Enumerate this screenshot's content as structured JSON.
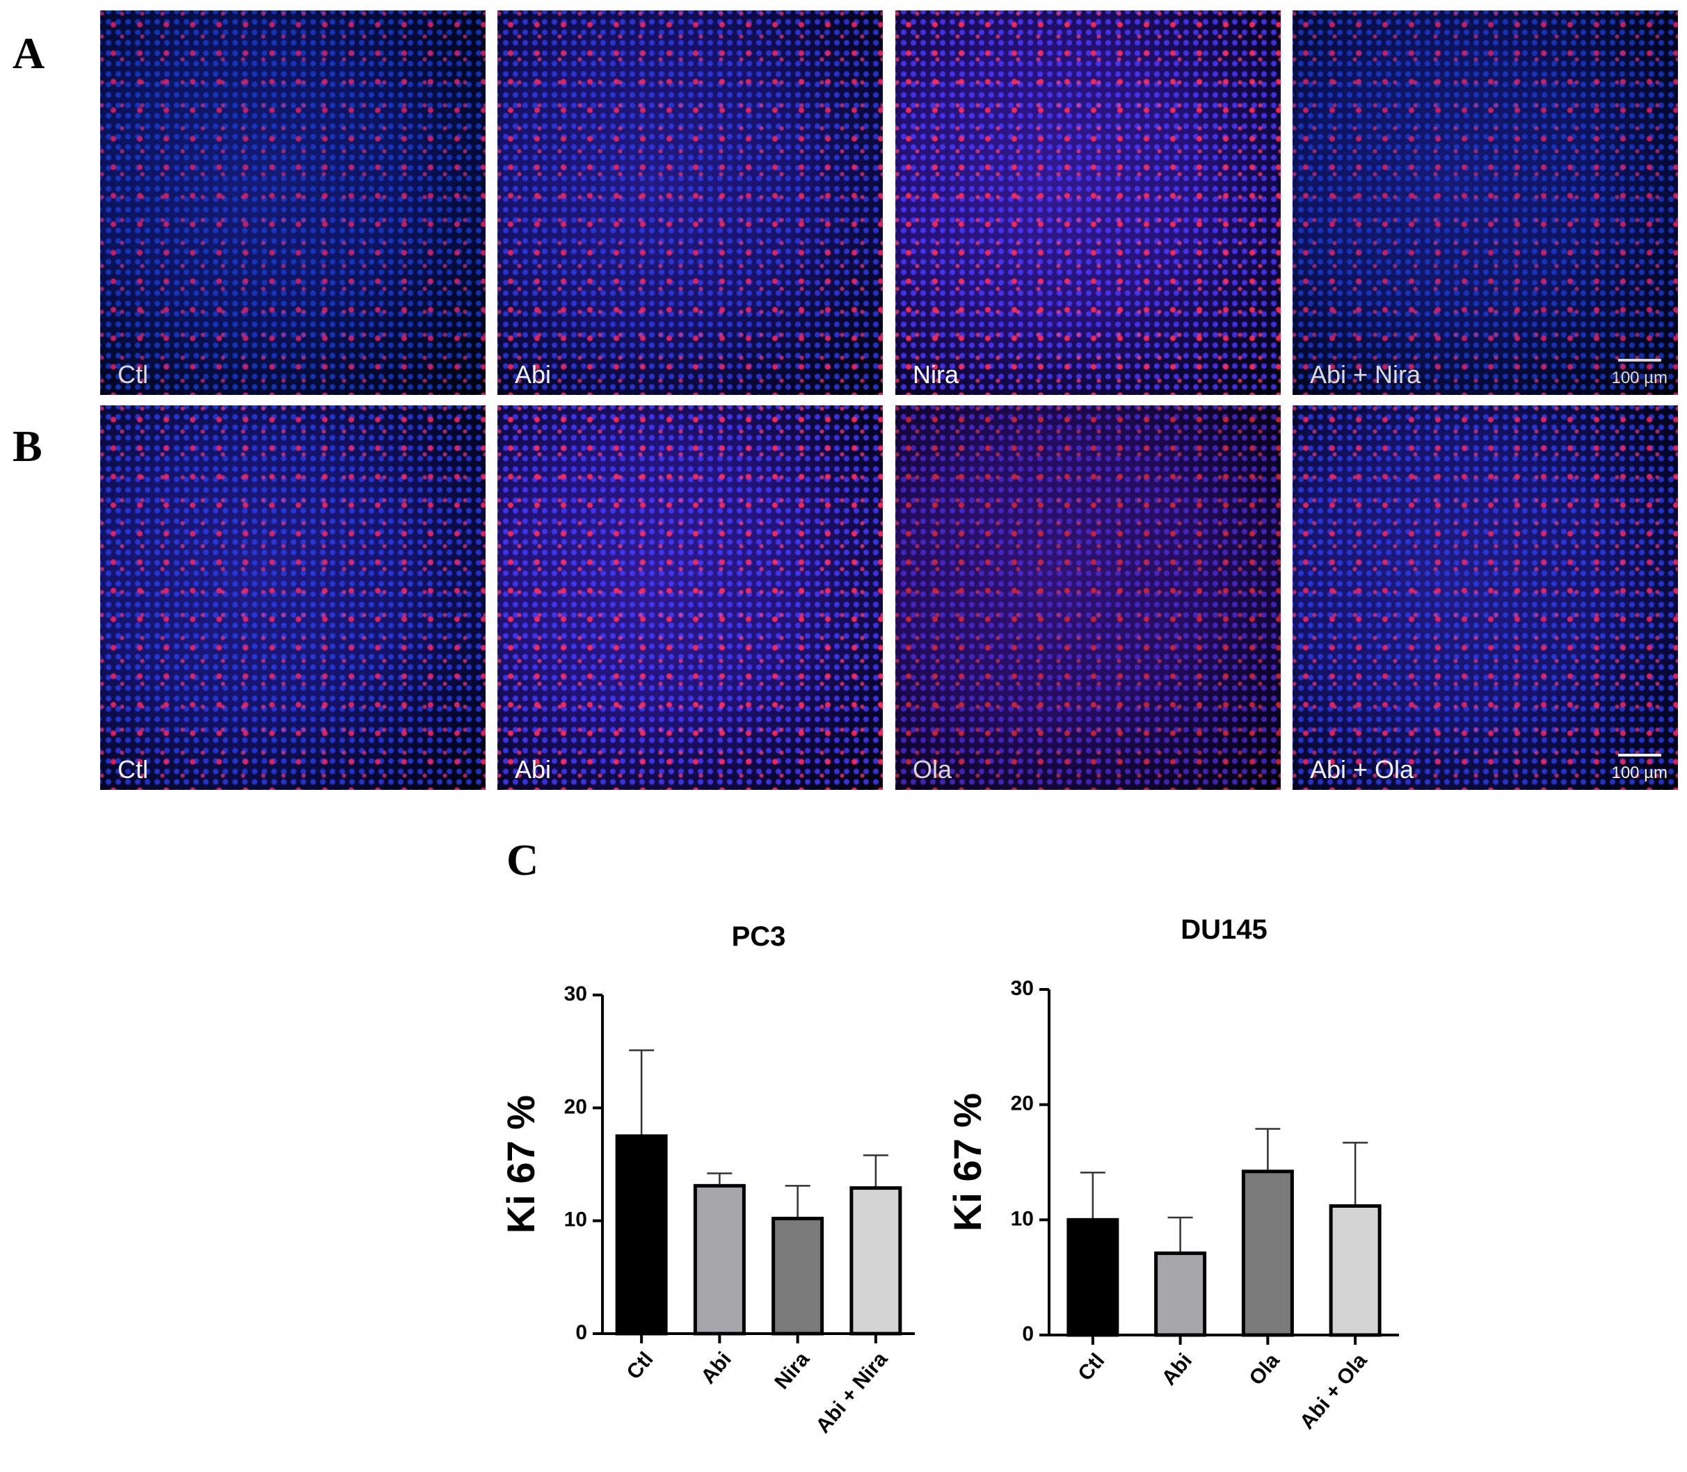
{
  "rows": [
    {
      "label": "A",
      "images": [
        {
          "label": "Ctl"
        },
        {
          "label": "Abi"
        },
        {
          "label": "Nira"
        },
        {
          "label": "Abi + Nira"
        }
      ],
      "scale_bar": "100 µm"
    },
    {
      "label": "B",
      "images": [
        {
          "label": "Ctl"
        },
        {
          "label": "Abi"
        },
        {
          "label": "Ola"
        },
        {
          "label": "Abi + Ola"
        }
      ],
      "scale_bar": "100 µm"
    }
  ],
  "panel_c_label": "C",
  "chart_data": [
    {
      "type": "bar",
      "title": "PC3",
      "ylabel": "Ki 67 %",
      "categories": [
        "Ctl",
        "Abi",
        "Nira",
        "Abi + Nira"
      ],
      "values": [
        17.5,
        13.1,
        10.2,
        12.9
      ],
      "errors": [
        7.6,
        1.1,
        2.9,
        2.9
      ],
      "colors": [
        "#000000",
        "#a6a6aa",
        "#7a7a7a",
        "#d4d4d4"
      ],
      "ylim": [
        0,
        30
      ],
      "yticks": [
        0,
        10,
        20,
        30
      ]
    },
    {
      "type": "bar",
      "title": "DU145",
      "ylabel": "Ki 67 %",
      "categories": [
        "Ctl",
        "Abi",
        "Ola",
        "Abi + Ola"
      ],
      "values": [
        10.0,
        7.1,
        14.2,
        11.2
      ],
      "errors": [
        4.1,
        3.1,
        3.7,
        5.5
      ],
      "colors": [
        "#000000",
        "#a6a6aa",
        "#7a7a7a",
        "#d4d4d4"
      ],
      "ylim": [
        0,
        30
      ],
      "yticks": [
        0,
        10,
        20,
        30
      ]
    }
  ]
}
